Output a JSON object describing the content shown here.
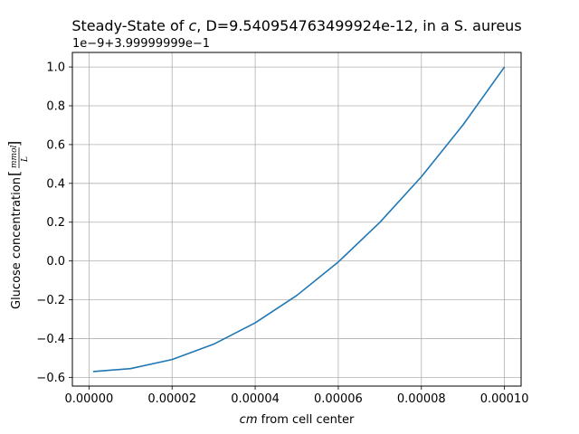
{
  "chart_data": {
    "type": "line",
    "title_prefix": "Steady-State of ",
    "title_var": "c",
    "title_suffix": ", D=9.540954763499924e-12, in a S. aureus",
    "xlabel_var": "cm",
    "xlabel_rest": " from cell center",
    "ylabel_main": "Glucose concentration",
    "ylabel_unit_num": "mmol",
    "ylabel_unit_den": "L",
    "offset_text": "1e−9+3.99999999e−1",
    "xlim": [
      -4e-06,
      0.000104
    ],
    "ylim": [
      -0.645,
      1.075
    ],
    "grid": true,
    "line_color": "#1f77b4",
    "x_ticks": [
      0,
      2e-05,
      4e-05,
      6e-05,
      8e-05,
      0.0001
    ],
    "x_tick_labels": [
      "0.00000",
      "0.00002",
      "0.00004",
      "0.00006",
      "0.00008",
      "0.00010"
    ],
    "y_ticks": [
      -0.6,
      -0.4,
      -0.2,
      0.0,
      0.2,
      0.4,
      0.6,
      0.8,
      1.0
    ],
    "y_tick_labels": [
      "−0.6",
      "−0.4",
      "−0.2",
      "0.0",
      "0.2",
      "0.4",
      "0.6",
      "0.8",
      "1.0"
    ],
    "series": [
      {
        "x": [
          1e-06,
          1e-05,
          2e-05,
          3e-05,
          4e-05,
          5e-05,
          6e-05,
          7e-05,
          8e-05,
          9e-05,
          0.0001
        ],
        "y": [
          -0.57,
          -0.555,
          -0.508,
          -0.429,
          -0.319,
          -0.178,
          -0.005,
          0.199,
          0.434,
          0.701,
          1.0
        ]
      }
    ]
  }
}
